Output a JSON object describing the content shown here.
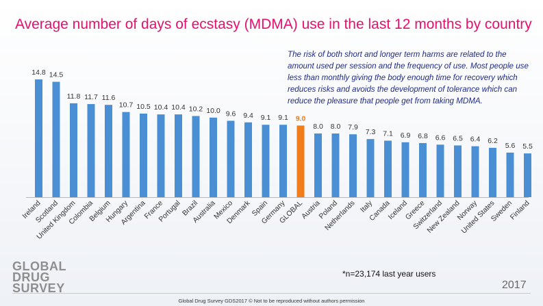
{
  "title": "Average number of days of ecstasy (MDMA) use in the last 12 months by country",
  "note": "The risk of both short and longer term harms are related to the amount used per session and the frequency of use. Most people use less than monthly giving the body enough time for recovery which reduces risks and avoids the development of tolerance which can reduce the pleasure that people get from taking MDMA.",
  "sample_note": "*n=23,174 last year users",
  "logo": [
    "GLOBAL",
    "DRUG",
    "SURVEY"
  ],
  "year": "2017",
  "footer": "Global Drug Survey GDS2017 © Not to be reproduced without authors permission",
  "colors": {
    "bar": "#4a8fd4",
    "highlight": "#f07d1a",
    "title": "#e5106e",
    "note": "#1f2a8c"
  },
  "chart_data": {
    "type": "bar",
    "categories": [
      "Ireland",
      "Scotland",
      "United Kingdom",
      "Colombia",
      "Belgium",
      "Hungary",
      "Argentina",
      "France",
      "Portugal",
      "Brazil",
      "Australia",
      "Mexico",
      "Denmark",
      "Spain",
      "Germany",
      "GLOBAL",
      "Austria",
      "Poland",
      "Netherlands",
      "Italy",
      "Canada",
      "Iceland",
      "Greece",
      "Switzerland",
      "New Zealand",
      "Norway",
      "United States",
      "Sweden",
      "Finland"
    ],
    "values": [
      14.8,
      14.5,
      11.8,
      11.7,
      11.6,
      10.7,
      10.5,
      10.4,
      10.4,
      10.2,
      10.0,
      9.6,
      9.4,
      9.1,
      9.1,
      9.0,
      8.0,
      8.0,
      7.9,
      7.3,
      7.1,
      6.9,
      6.8,
      6.6,
      6.5,
      6.4,
      6.2,
      5.6,
      5.5
    ],
    "value_labels": [
      "14.8",
      "14.5",
      "11.8",
      "11.7",
      "11.6",
      "10.7",
      "10.5",
      "10.4",
      "10.4",
      "10.2",
      "10.0",
      "9.6",
      "9.4",
      "9.1",
      "9.1",
      "9.0",
      "8.0",
      "8.0",
      "7.9",
      "7.3",
      "7.1",
      "6.9",
      "6.8",
      "6.6",
      "6.5",
      "6.4",
      "6.2",
      "5.6",
      "5.5"
    ],
    "highlight": "GLOBAL",
    "ylim": [
      0,
      14.8
    ],
    "grid": false,
    "xlabel": "",
    "ylabel": ""
  }
}
